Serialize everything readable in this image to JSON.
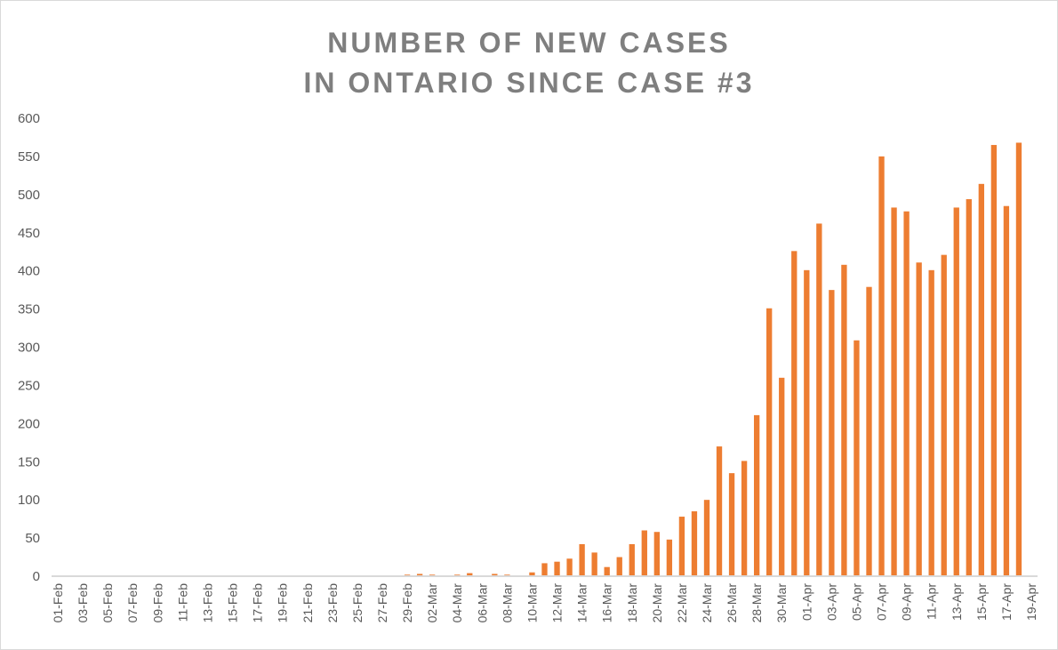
{
  "chart_data": {
    "type": "bar",
    "title_lines": [
      "NUMBER OF NEW CASES",
      "IN ONTARIO SINCE CASE #3"
    ],
    "xlabel": "",
    "ylabel": "",
    "ylim": [
      0,
      600
    ],
    "yticks": [
      0,
      50,
      100,
      150,
      200,
      250,
      300,
      350,
      400,
      450,
      500,
      550,
      600
    ],
    "grid": false,
    "legend": "none",
    "bar_color": "#ed7d31",
    "categories": [
      "01-Feb",
      "02-Feb",
      "03-Feb",
      "04-Feb",
      "05-Feb",
      "06-Feb",
      "07-Feb",
      "08-Feb",
      "09-Feb",
      "10-Feb",
      "11-Feb",
      "12-Feb",
      "13-Feb",
      "14-Feb",
      "15-Feb",
      "16-Feb",
      "17-Feb",
      "18-Feb",
      "19-Feb",
      "20-Feb",
      "21-Feb",
      "22-Feb",
      "23-Feb",
      "24-Feb",
      "25-Feb",
      "26-Feb",
      "27-Feb",
      "28-Feb",
      "29-Feb",
      "01-Mar",
      "02-Mar",
      "03-Mar",
      "04-Mar",
      "05-Mar",
      "06-Mar",
      "07-Mar",
      "08-Mar",
      "09-Mar",
      "10-Mar",
      "11-Mar",
      "12-Mar",
      "13-Mar",
      "14-Mar",
      "15-Mar",
      "16-Mar",
      "17-Mar",
      "18-Mar",
      "19-Mar",
      "20-Mar",
      "21-Mar",
      "22-Mar",
      "23-Mar",
      "24-Mar",
      "25-Mar",
      "26-Mar",
      "27-Mar",
      "28-Mar",
      "29-Mar",
      "30-Mar",
      "31-Mar",
      "01-Apr",
      "02-Apr",
      "03-Apr",
      "04-Apr",
      "05-Apr",
      "06-Apr",
      "07-Apr",
      "08-Apr",
      "09-Apr",
      "10-Apr",
      "11-Apr",
      "12-Apr",
      "13-Apr",
      "14-Apr",
      "15-Apr",
      "16-Apr",
      "17-Apr",
      "18-Apr",
      "19-Apr"
    ],
    "tick_labels": [
      "01-Feb",
      "03-Feb",
      "05-Feb",
      "07-Feb",
      "09-Feb",
      "11-Feb",
      "13-Feb",
      "15-Feb",
      "17-Feb",
      "19-Feb",
      "21-Feb",
      "23-Feb",
      "25-Feb",
      "27-Feb",
      "29-Feb",
      "02-Mar",
      "04-Mar",
      "06-Mar",
      "08-Mar",
      "10-Mar",
      "12-Mar",
      "14-Mar",
      "16-Mar",
      "18-Mar",
      "20-Mar",
      "22-Mar",
      "24-Mar",
      "26-Mar",
      "28-Mar",
      "30-Mar",
      "01-Apr",
      "03-Apr",
      "05-Apr",
      "07-Apr",
      "09-Apr",
      "11-Apr",
      "13-Apr",
      "15-Apr",
      "17-Apr",
      "19-Apr"
    ],
    "values": [
      0,
      0,
      0,
      0,
      0,
      0,
      0,
      0,
      0,
      0,
      0,
      0,
      0,
      0,
      0,
      0,
      0,
      0,
      0,
      0,
      0,
      0,
      0,
      0,
      0,
      0,
      0,
      0,
      2,
      3,
      2,
      0,
      2,
      4,
      0,
      3,
      2,
      0,
      5,
      17,
      19,
      23,
      42,
      31,
      12,
      25,
      42,
      60,
      58,
      48,
      78,
      85,
      100,
      170,
      135,
      151,
      211,
      351,
      260,
      426,
      401,
      462,
      375,
      408,
      309,
      379,
      550,
      483,
      478,
      411,
      401,
      421,
      483,
      494,
      514,
      565,
      485,
      568,
      0
    ]
  }
}
